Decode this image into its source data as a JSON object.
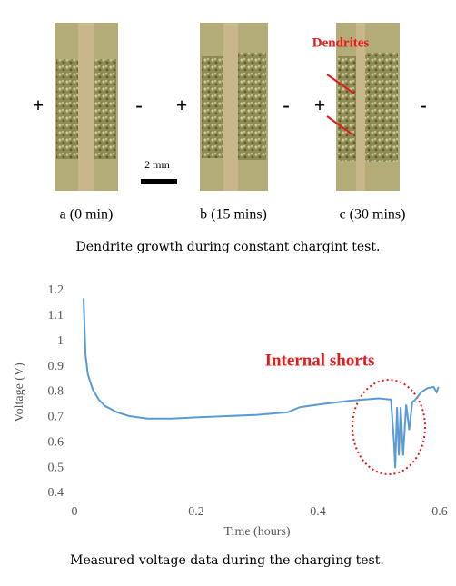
{
  "figure": {
    "panels": [
      {
        "label": "a (0 min)",
        "plus": "+",
        "minus": "-"
      },
      {
        "label": "b (15 mins)",
        "plus": "+",
        "minus": "-"
      },
      {
        "label": "c (30 mins)",
        "plus": "+",
        "minus": "-"
      }
    ],
    "annotation": "Dendrites",
    "scale_bar": "2 mm",
    "caption": "Dendrite growth during constant chargint test."
  },
  "chart_data": {
    "type": "line",
    "x": [
      0.015,
      0.018,
      0.022,
      0.03,
      0.04,
      0.05,
      0.07,
      0.09,
      0.12,
      0.16,
      0.2,
      0.25,
      0.3,
      0.35,
      0.37,
      0.4,
      0.45,
      0.5,
      0.52,
      0.525,
      0.527,
      0.53,
      0.533,
      0.536,
      0.54,
      0.545,
      0.55,
      0.555,
      0.56,
      0.57,
      0.58,
      0.59,
      0.595,
      0.598
    ],
    "series": [
      {
        "color": "#5b9bd5",
        "values": [
          1.17,
          0.95,
          0.87,
          0.81,
          0.77,
          0.745,
          0.72,
          0.705,
          0.695,
          0.695,
          0.7,
          0.705,
          0.71,
          0.72,
          0.74,
          0.75,
          0.765,
          0.775,
          0.77,
          0.6,
          0.5,
          0.74,
          0.55,
          0.74,
          0.55,
          0.75,
          0.65,
          0.76,
          0.77,
          0.8,
          0.815,
          0.82,
          0.8,
          0.82
        ]
      }
    ],
    "xlim": [
      0,
      0.6
    ],
    "ylim": [
      0.4,
      1.2
    ],
    "xticks": [
      0,
      0.2,
      0.4,
      0.6
    ],
    "yticks": [
      0.4,
      0.5,
      0.6,
      0.7,
      0.8,
      0.9,
      1,
      1.1,
      1.2
    ],
    "xlabel": "Time (hours)",
    "ylabel": "Voltage (V)",
    "annotation": "Internal shorts",
    "caption": "Measured voltage data during the charging test."
  }
}
